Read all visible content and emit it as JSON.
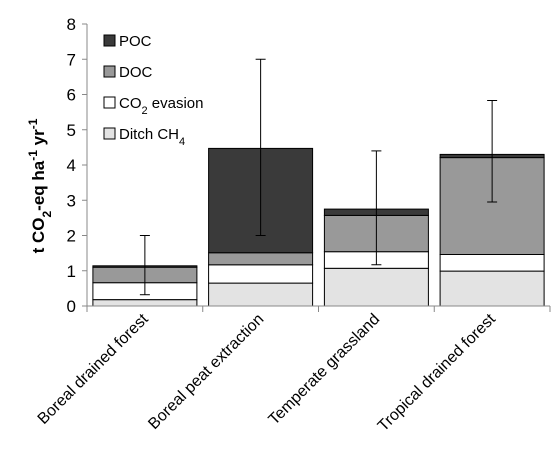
{
  "chart_data": {
    "type": "bar",
    "stacked": true,
    "categories": [
      "Boreal drained forest",
      "Boreal peat extraction",
      "Temperate grassland",
      "Tropical drained forest"
    ],
    "series": [
      {
        "name": "Ditch CH4",
        "name_main": "Ditch CH",
        "name_sub": "4",
        "color": "#e3e3e3",
        "values": [
          0.18,
          0.65,
          1.07,
          0.99
        ]
      },
      {
        "name": "CO2 evasion",
        "name_main": "CO",
        "name_sub": "2",
        "name_rest": " evasion",
        "color": "#ffffff",
        "values": [
          0.48,
          0.52,
          0.47,
          0.47
        ]
      },
      {
        "name": "DOC",
        "name_main": "DOC",
        "color": "#999999",
        "values": [
          0.44,
          0.34,
          1.03,
          2.75
        ]
      },
      {
        "name": "POC",
        "name_main": "POC",
        "color": "#3a3a3a",
        "values": [
          0.04,
          2.96,
          0.18,
          0.09
        ]
      }
    ],
    "error_bars": [
      {
        "low": 0.32,
        "high": 2.0
      },
      {
        "low": 2.0,
        "high": 7.0
      },
      {
        "low": 1.17,
        "high": 4.4
      },
      {
        "low": 2.95,
        "high": 5.83
      }
    ],
    "ylabel": "t CO2-eq ha-1 yr-1",
    "ylabel_parts": [
      "t CO",
      "2",
      "-eq ha",
      "-1",
      " yr",
      "-1"
    ],
    "ylim": [
      0,
      8
    ],
    "yticks": [
      "0",
      "1",
      "2",
      "3",
      "4",
      "5",
      "6",
      "7",
      "8"
    ],
    "grid": false,
    "legend_position": "top-left"
  }
}
